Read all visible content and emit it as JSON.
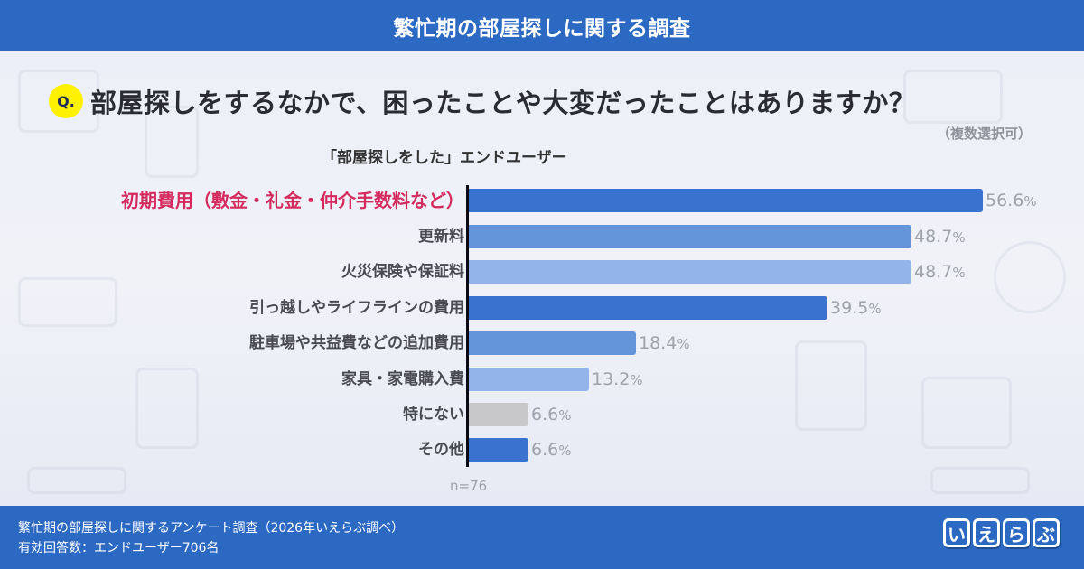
{
  "header": {
    "title": "繁忙期の部屋探しに関する調査"
  },
  "question": {
    "badge": "Q.",
    "text": "部屋探しをするなかで、困ったことや大変だったことはありますか？",
    "note": "（複数選択可）"
  },
  "subtitle": "「部屋探しをした」エンドユーザー",
  "colors": {
    "header_bg": "#2c69c3",
    "highlight_label": "#d42a5e",
    "bar_dark": "#3a72d0",
    "bar_mid": "#6495db",
    "bar_light": "#93b4ea",
    "bar_gray": "#c8c8ca",
    "value_text": "#9ea2aa",
    "q_badge": "#fff200"
  },
  "chart_data": {
    "type": "bar",
    "orientation": "horizontal",
    "title": "部屋探しをするなかで、困ったことや大変だったことはありますか？",
    "subtitle": "「部屋探しをした」エンドユーザー",
    "categories": [
      "初期費用（敷金・礼金・仲介手数料など）",
      "更新料",
      "火災保険や保証料",
      "引っ越しやライフラインの費用",
      "駐車場や共益費などの追加費用",
      "家具・家電購入費",
      "特にない",
      "その他"
    ],
    "values": [
      56.6,
      48.7,
      48.7,
      39.5,
      18.4,
      13.2,
      6.6,
      6.6
    ],
    "value_labels": [
      "56.6",
      "48.7",
      "48.7",
      "39.5",
      "18.4",
      "13.2",
      "6.6",
      "6.6"
    ],
    "unit": "%",
    "bar_colors": [
      "#3a72d0",
      "#6495db",
      "#93b4ea",
      "#3a72d0",
      "#6495db",
      "#93b4ea",
      "#c8c8ca",
      "#3a72d0"
    ],
    "highlighted_category": "初期費用（敷金・礼金・仲介手数料など）",
    "sample_size": "n=76",
    "xlabel": "",
    "ylabel": "",
    "xlim": [
      0,
      60
    ],
    "grid": false,
    "legend": "none"
  },
  "n_label": "n=76",
  "footer": {
    "line1": "繁忙期の部屋探しに関するアンケート調査（2026年いえらぶ調べ）",
    "line2": "有効回答数：エンドユーザー706名",
    "logo_chars": [
      "い",
      "え",
      "ら",
      "ぶ"
    ]
  }
}
